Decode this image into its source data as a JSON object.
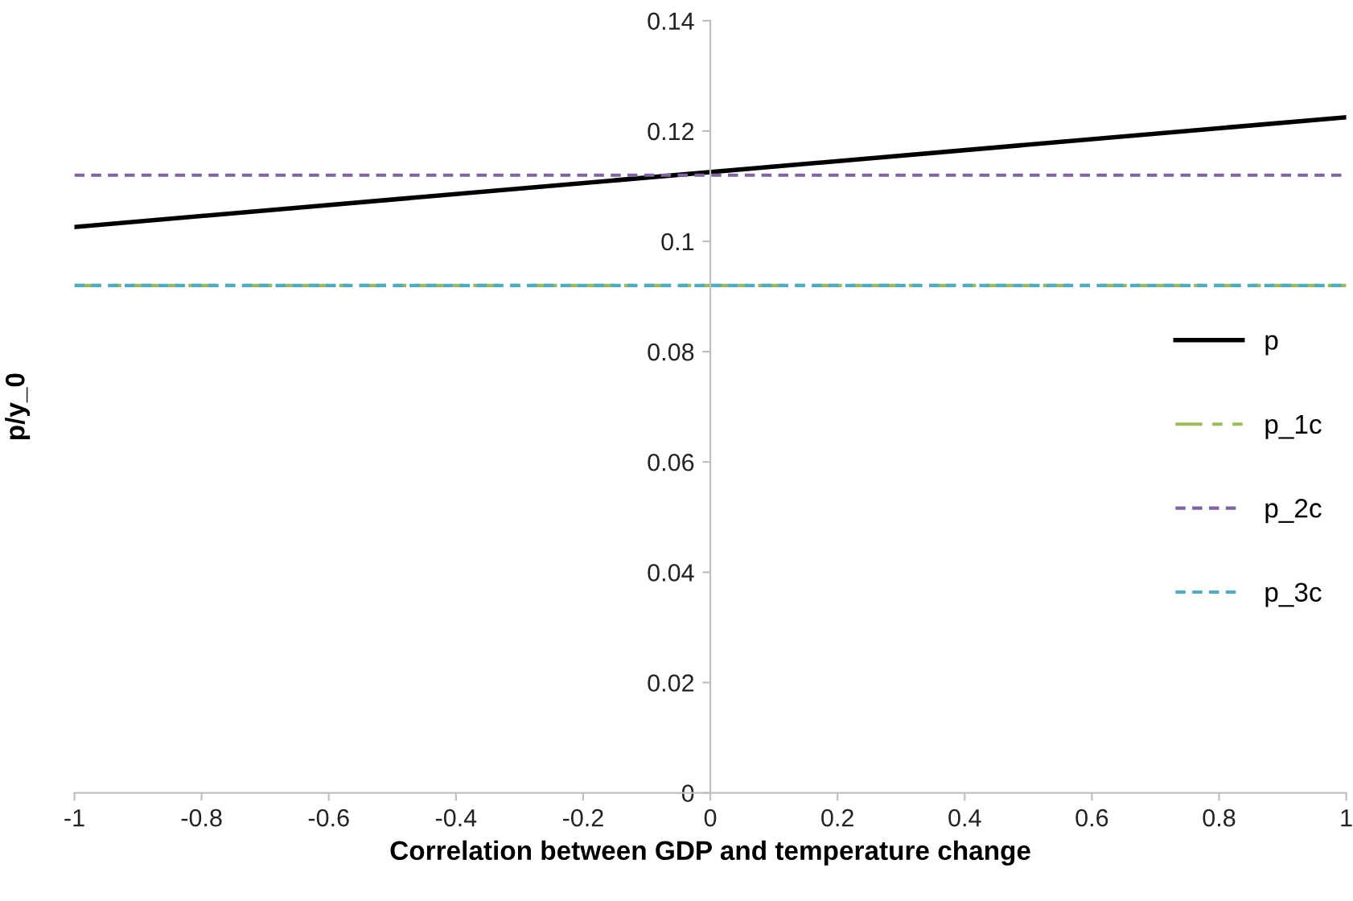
{
  "chart_data": {
    "type": "line",
    "xlabel": "Correlation between GDP and temperature change",
    "ylabel": "p/y_0",
    "x": [
      -1,
      1
    ],
    "series": [
      {
        "name": "p",
        "color": "#000000",
        "values": [
          0.1026,
          0.1225
        ],
        "line_style": "solid"
      },
      {
        "name": "p_1c",
        "color": "#9bbb59",
        "values": [
          0.092,
          0.092
        ],
        "line_style": "dashed"
      },
      {
        "name": "p_2c",
        "color": "#8064a2",
        "values": [
          0.112,
          0.112
        ],
        "line_style": "dashed"
      },
      {
        "name": "p_3c",
        "color": "#4bacc6",
        "values": [
          0.092,
          0.092
        ],
        "line_style": "dashed"
      }
    ],
    "xlim": [
      -1,
      1
    ],
    "ylim": [
      0,
      0.14
    ],
    "xticks": [
      -1,
      -0.8,
      -0.6,
      -0.4,
      -0.2,
      0,
      0.2,
      0.4,
      0.6,
      0.8,
      1
    ],
    "yticks": [
      0,
      0.02,
      0.04,
      0.06,
      0.08,
      0.1,
      0.12,
      0.14
    ],
    "grid": false,
    "legend": "right",
    "marker": "none"
  }
}
